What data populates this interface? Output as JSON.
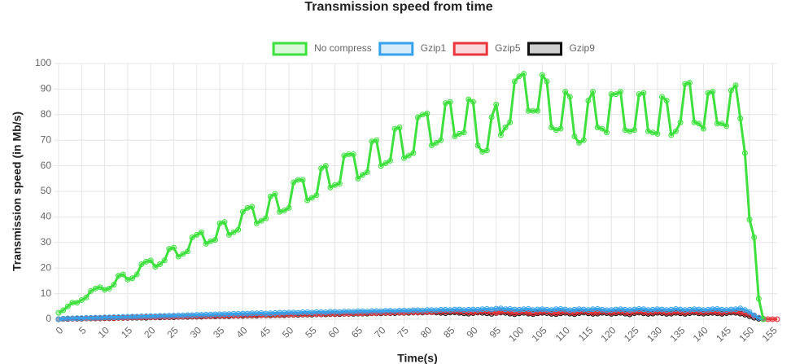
{
  "chart_data": {
    "type": "line",
    "title": "Transmission speed from time",
    "x_label": "Time(s)",
    "y_label": "Transmission speed (in Mb/s)",
    "xlim": [
      0,
      156
    ],
    "ylim": [
      0,
      100
    ],
    "xticks": [
      0,
      5,
      10,
      15,
      20,
      25,
      30,
      35,
      40,
      45,
      50,
      55,
      60,
      65,
      70,
      75,
      80,
      85,
      90,
      95,
      100,
      105,
      110,
      115,
      120,
      125,
      130,
      135,
      140,
      145,
      150,
      155
    ],
    "yticks": [
      0,
      10,
      20,
      30,
      40,
      50,
      60,
      70,
      80,
      90,
      100
    ],
    "grid": true,
    "legend": "top",
    "x": [
      0,
      1,
      2,
      3,
      4,
      5,
      6,
      7,
      8,
      9,
      10,
      11,
      12,
      13,
      14,
      15,
      16,
      17,
      18,
      19,
      20,
      21,
      22,
      23,
      24,
      25,
      26,
      27,
      28,
      29,
      30,
      31,
      32,
      33,
      34,
      35,
      36,
      37,
      38,
      39,
      40,
      41,
      42,
      43,
      44,
      45,
      46,
      47,
      48,
      49,
      50,
      51,
      52,
      53,
      54,
      55,
      56,
      57,
      58,
      59,
      60,
      61,
      62,
      63,
      64,
      65,
      66,
      67,
      68,
      69,
      70,
      71,
      72,
      73,
      74,
      75,
      76,
      77,
      78,
      79,
      80,
      81,
      82,
      83,
      84,
      85,
      86,
      87,
      88,
      89,
      90,
      91,
      92,
      93,
      94,
      95,
      96,
      97,
      98,
      99,
      100,
      101,
      102,
      103,
      104,
      105,
      106,
      107,
      108,
      109,
      110,
      111,
      112,
      113,
      114,
      115,
      116,
      117,
      118,
      119,
      120,
      121,
      122,
      123,
      124,
      125,
      126,
      127,
      128,
      129,
      130,
      131,
      132,
      133,
      134,
      135,
      136,
      137,
      138,
      139,
      140,
      141,
      142,
      143,
      144,
      145,
      146,
      147,
      148,
      149,
      150,
      151,
      152,
      153,
      154,
      155,
      156
    ],
    "series": [
      {
        "name": "No compress",
        "color": "#3ee03e",
        "values": [
          2.5,
          3.5,
          5,
          6.5,
          6.5,
          7.5,
          8.5,
          11,
          12,
          12.5,
          11.5,
          12,
          13.5,
          17,
          17.5,
          15.5,
          16,
          17.5,
          21.5,
          22.5,
          23,
          20.5,
          21.5,
          23,
          27.5,
          28,
          24.5,
          25.5,
          26.5,
          32,
          33,
          34,
          29.5,
          30.5,
          31,
          37.5,
          38,
          33,
          34,
          35,
          42,
          43.5,
          44,
          37.5,
          38.5,
          39.5,
          48,
          49,
          42,
          42.5,
          43.5,
          53.5,
          54.5,
          54.5,
          46.5,
          47.5,
          48.5,
          59,
          60,
          51.5,
          52.5,
          53,
          64,
          64.5,
          64.5,
          55,
          56.5,
          57.5,
          69.5,
          70,
          60,
          61,
          62,
          74.5,
          75,
          63,
          64,
          65,
          79,
          80,
          80.5,
          68,
          69,
          70,
          84.5,
          85,
          71.5,
          72.5,
          73,
          86,
          85,
          68,
          65.5,
          66,
          79,
          84,
          72,
          75,
          77,
          93,
          95,
          96,
          81.5,
          81.5,
          81.5,
          95.5,
          93,
          75,
          74,
          74.5,
          89,
          87,
          71.5,
          69,
          70,
          85.5,
          89,
          75,
          74.5,
          73,
          88,
          88,
          89,
          74,
          73.5,
          74,
          88,
          88.5,
          73.5,
          73,
          72.5,
          87,
          85.5,
          72,
          73.5,
          77,
          92,
          92.5,
          77,
          76.5,
          74.5,
          88.5,
          89,
          76.5,
          76.5,
          75.5,
          89.5,
          91.5,
          78.5,
          65,
          39,
          32,
          8,
          0,
          null,
          null,
          null
        ]
      },
      {
        "name": "Gzip1",
        "color": "#36a2eb",
        "values": [
          0,
          0.2,
          0.3,
          0.3,
          0.4,
          0.4,
          0.5,
          0.5,
          0.6,
          0.6,
          0.7,
          0.7,
          0.8,
          0.8,
          0.9,
          0.9,
          1,
          1,
          1.1,
          1.1,
          1.2,
          1.2,
          1.3,
          1.3,
          1.4,
          1.4,
          1.5,
          1.5,
          1.6,
          1.6,
          1.7,
          1.7,
          1.8,
          1.8,
          1.9,
          1.9,
          2,
          2,
          2.1,
          2.1,
          2.2,
          2.2,
          2.3,
          2.3,
          2.4,
          2.2,
          2.3,
          2.4,
          2.5,
          2.5,
          2.6,
          2.6,
          2.5,
          2.7,
          2.7,
          2.6,
          2.8,
          2.8,
          2.7,
          2.9,
          2.9,
          2.8,
          3,
          3,
          2.9,
          3.1,
          3.1,
          3,
          3.2,
          3.2,
          3.1,
          3.3,
          3.3,
          3.2,
          3.4,
          3.4,
          3.3,
          3.5,
          3.5,
          3.4,
          3.6,
          3.6,
          3.5,
          3.7,
          3.7,
          3.6,
          3.8,
          3.8,
          3.6,
          3.7,
          3.8,
          3.7,
          3.9,
          4,
          3.8,
          4.1,
          4.2,
          3.9,
          4,
          3.8,
          3.7,
          3.9,
          4,
          3.6,
          3.8,
          3.9,
          3.7,
          3.6,
          3.9,
          4,
          3.8,
          3.5,
          3.7,
          3.9,
          3.8,
          3.6,
          3.9,
          4,
          3.7,
          3.5,
          3.6,
          3.8,
          3.9,
          3.7,
          3.6,
          3.8,
          4,
          3.9,
          3.6,
          3.7,
          3.9,
          3.8,
          3.6,
          3.7,
          4,
          3.8,
          3.6,
          3.7,
          3.9,
          3.8,
          3.6,
          3.7,
          3.9,
          4,
          3.7,
          3.6,
          3.8,
          3.9,
          4.2,
          3.6,
          2.8,
          1.5,
          0.5,
          0,
          null,
          null,
          null
        ]
      },
      {
        "name": "Gzip5",
        "color": "#e8363c",
        "values": [
          0,
          0.1,
          0.2,
          0.2,
          0.3,
          0.3,
          0.3,
          0.4,
          0.4,
          0.4,
          0.5,
          0.5,
          0.5,
          0.6,
          0.6,
          0.6,
          0.7,
          0.7,
          0.7,
          0.8,
          0.8,
          0.8,
          0.9,
          0.9,
          0.9,
          1,
          1,
          1,
          1.1,
          1.1,
          1.1,
          1.2,
          1.2,
          1.2,
          1.3,
          1.3,
          1.3,
          1.4,
          1.4,
          1.4,
          1.5,
          1.5,
          1.5,
          1.6,
          1.6,
          1.6,
          1.7,
          1.7,
          1.7,
          1.8,
          1.8,
          1.8,
          1.9,
          1.9,
          1.9,
          2,
          2,
          2,
          2.1,
          2.1,
          2.1,
          2.2,
          2.2,
          2.2,
          2.3,
          2.3,
          2.3,
          2.4,
          2.4,
          2.4,
          2.5,
          2.5,
          2.5,
          2.6,
          2.6,
          2.6,
          2.7,
          2.7,
          2.7,
          2.8,
          2.8,
          2.8,
          2.9,
          2.9,
          2.9,
          3,
          3,
          2.9,
          2.8,
          2.7,
          2.6,
          2.8,
          3,
          2.9,
          2.7,
          2.5,
          2.8,
          3,
          2.6,
          2.4,
          2.7,
          2.9,
          2.5,
          2.3,
          2.6,
          2.8,
          2.9,
          2.5,
          2.4,
          2.7,
          2.9,
          2.6,
          2.4,
          2.8,
          3,
          2.7,
          2.5,
          2.6,
          2.9,
          2.8,
          2.5,
          2.7,
          2.9,
          2.6,
          2.4,
          2.8,
          3,
          2.7,
          2.5,
          2.6,
          2.9,
          2.8,
          2.5,
          2.6,
          2.9,
          2.7,
          2.5,
          2.8,
          3,
          2.7,
          2.6,
          2.8,
          2.9,
          2.7,
          2.5,
          2.8,
          3,
          2.9,
          2.6,
          2.2,
          1.8,
          1.2,
          0.6,
          0.2,
          0,
          0,
          0
        ]
      },
      {
        "name": "Gzip9",
        "color": "#111111",
        "values": [
          0,
          0.1,
          0.1,
          0.2,
          0.2,
          0.2,
          0.3,
          0.3,
          0.3,
          0.3,
          0.4,
          0.4,
          0.4,
          0.5,
          0.5,
          0.5,
          0.6,
          0.6,
          0.6,
          0.6,
          0.7,
          0.7,
          0.7,
          0.8,
          0.8,
          0.8,
          0.9,
          0.9,
          0.9,
          1,
          1,
          1,
          1.1,
          1.1,
          1.1,
          1.2,
          1.2,
          1.2,
          1.3,
          1.3,
          1.3,
          1.4,
          1.4,
          1.4,
          1.5,
          1.5,
          1.5,
          1.6,
          1.6,
          1.6,
          1.7,
          1.7,
          1.7,
          1.8,
          1.8,
          1.8,
          1.9,
          1.9,
          1.9,
          2,
          2,
          2,
          2.1,
          2.1,
          2.1,
          2.2,
          2.2,
          2.2,
          2.3,
          2.3,
          2.3,
          2.4,
          2.4,
          2.4,
          2.5,
          2.5,
          2.5,
          2.6,
          2.6,
          2.6,
          2.7,
          2.7,
          2.6,
          2.5,
          2.4,
          2.6,
          2.7,
          2.5,
          2.3,
          2.2,
          2.4,
          2.6,
          2.5,
          2.3,
          2.1,
          2.4,
          2.6,
          2.5,
          2.2,
          2,
          2.3,
          2.5,
          2.2,
          2,
          2.3,
          2.5,
          2.4,
          2.1,
          2,
          2.3,
          2.5,
          2.2,
          2,
          2.4,
          2.6,
          2.3,
          2.1,
          2.2,
          2.5,
          2.4,
          2.1,
          2.3,
          2.5,
          2.2,
          1.9,
          2.4,
          2.6,
          2.3,
          2.1,
          2.2,
          2.5,
          2.4,
          2.1,
          2.2,
          2.5,
          2.3,
          2.1,
          2.4,
          2.6,
          2.3,
          2.2,
          2.4,
          2.5,
          2.3,
          2.1,
          2.4,
          2.6,
          2.5,
          2.2,
          1.8,
          1.2,
          0.6,
          0.2,
          0,
          null,
          null,
          null
        ]
      }
    ]
  }
}
